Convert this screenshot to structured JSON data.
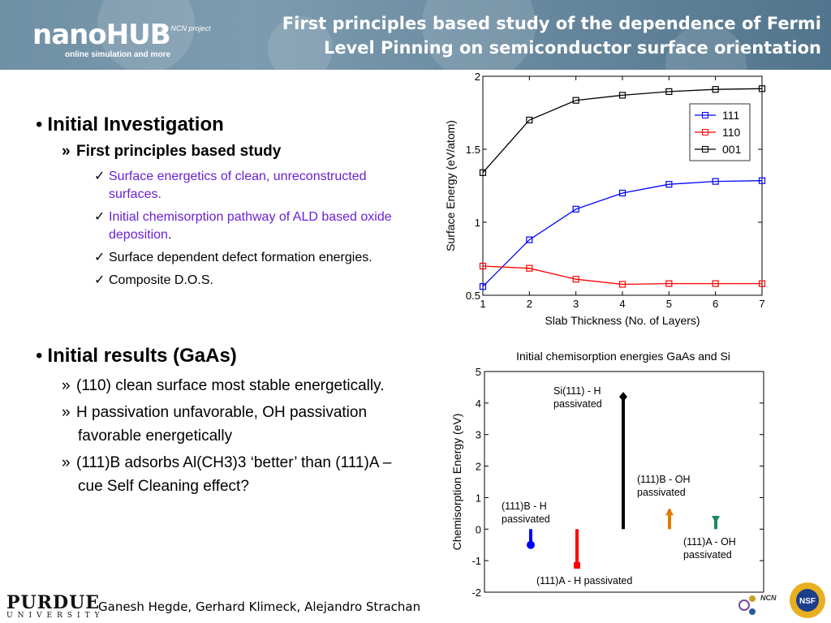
{
  "header": {
    "logo_name": "nanoHUB",
    "logo_tagline": "online simulation and more",
    "ncn_project": "an NCN project",
    "title_line1": "First principles based study of the dependence of Fermi",
    "title_line2": "Level Pinning on semiconductor surface orientation"
  },
  "section1": {
    "heading": "Initial Investigation",
    "sub": "First principles based study",
    "items": [
      {
        "text": "Surface energetics of clean, unreconstructed surfaces.",
        "color": "#6a1fd6"
      },
      {
        "text": "Initial chemisorption pathway of ALD based oxide deposition",
        "suffix": ".",
        "color": "#6a1fd6"
      },
      {
        "text": "Surface dependent defect formation energies.",
        "color": "#000000"
      },
      {
        "text": "Composite D.O.S.",
        "color": "#000000"
      }
    ]
  },
  "section2": {
    "heading": "Initial results (GaAs)",
    "items": [
      "(110) clean surface most stable energetically.",
      "H passivation unfavorable, OH passivation favorable energetically",
      "(111)B  adsorbs Al(CH3)3 ‘better’ than (111)A – cue Self Cleaning effect?"
    ]
  },
  "footer": {
    "university_big": "PURDUE",
    "university_small": "UNIVERSITY",
    "authors": "Ganesh Hegde, Gerhard Klimeck, Alejandro Strachan",
    "ncn_label": "NCN",
    "nsf_label": "NSF"
  },
  "chart_data": [
    {
      "type": "line",
      "title": "",
      "xlabel": "Slab Thickness (No. of Layers)",
      "ylabel": "Surface Energy (eV/atom)",
      "x": [
        1,
        2,
        3,
        4,
        5,
        6,
        7
      ],
      "xlim": [
        1,
        7
      ],
      "ylim": [
        0.5,
        2
      ],
      "xticks": [
        1,
        2,
        3,
        4,
        5,
        6,
        7
      ],
      "yticks": [
        0.5,
        1,
        1.5,
        2
      ],
      "legend": "top-right",
      "series": [
        {
          "name": "111",
          "color": "#0000ff",
          "values": [
            0.56,
            0.88,
            1.09,
            1.2,
            1.26,
            1.28,
            1.285
          ]
        },
        {
          "name": "110",
          "color": "#ff0000",
          "values": [
            0.7,
            0.685,
            0.61,
            0.575,
            0.58,
            0.58,
            0.58
          ]
        },
        {
          "name": "001",
          "color": "#000000",
          "values": [
            1.34,
            1.7,
            1.835,
            1.87,
            1.895,
            1.91,
            1.915
          ]
        }
      ]
    },
    {
      "type": "bar",
      "title": "Initial chemisorption energies GaAs and Si",
      "xlabel": "",
      "ylabel": "Chemisorption Energy (eV)",
      "ylim": [
        -2,
        5
      ],
      "yticks": [
        -2,
        -1,
        0,
        1,
        2,
        3,
        4,
        5
      ],
      "grid": false,
      "stems": [
        {
          "label": "(111)B - H passivated",
          "value": -0.5,
          "color": "#0000ff",
          "marker": "circle"
        },
        {
          "label": "(111)A - H passivated",
          "value": -1.15,
          "color": "#ff0000",
          "marker": "square"
        },
        {
          "label": "Si(111) - H passivated",
          "value": 4.2,
          "color": "#000000",
          "marker": "diamond"
        },
        {
          "label": "(111)B - OH passivated",
          "value": 0.62,
          "color": "#e07b00",
          "marker": "triangle-up"
        },
        {
          "label": "(111)A - OH passivated",
          "value": 0.42,
          "color": "#1a8a5a",
          "marker": "triangle-down"
        }
      ]
    }
  ]
}
